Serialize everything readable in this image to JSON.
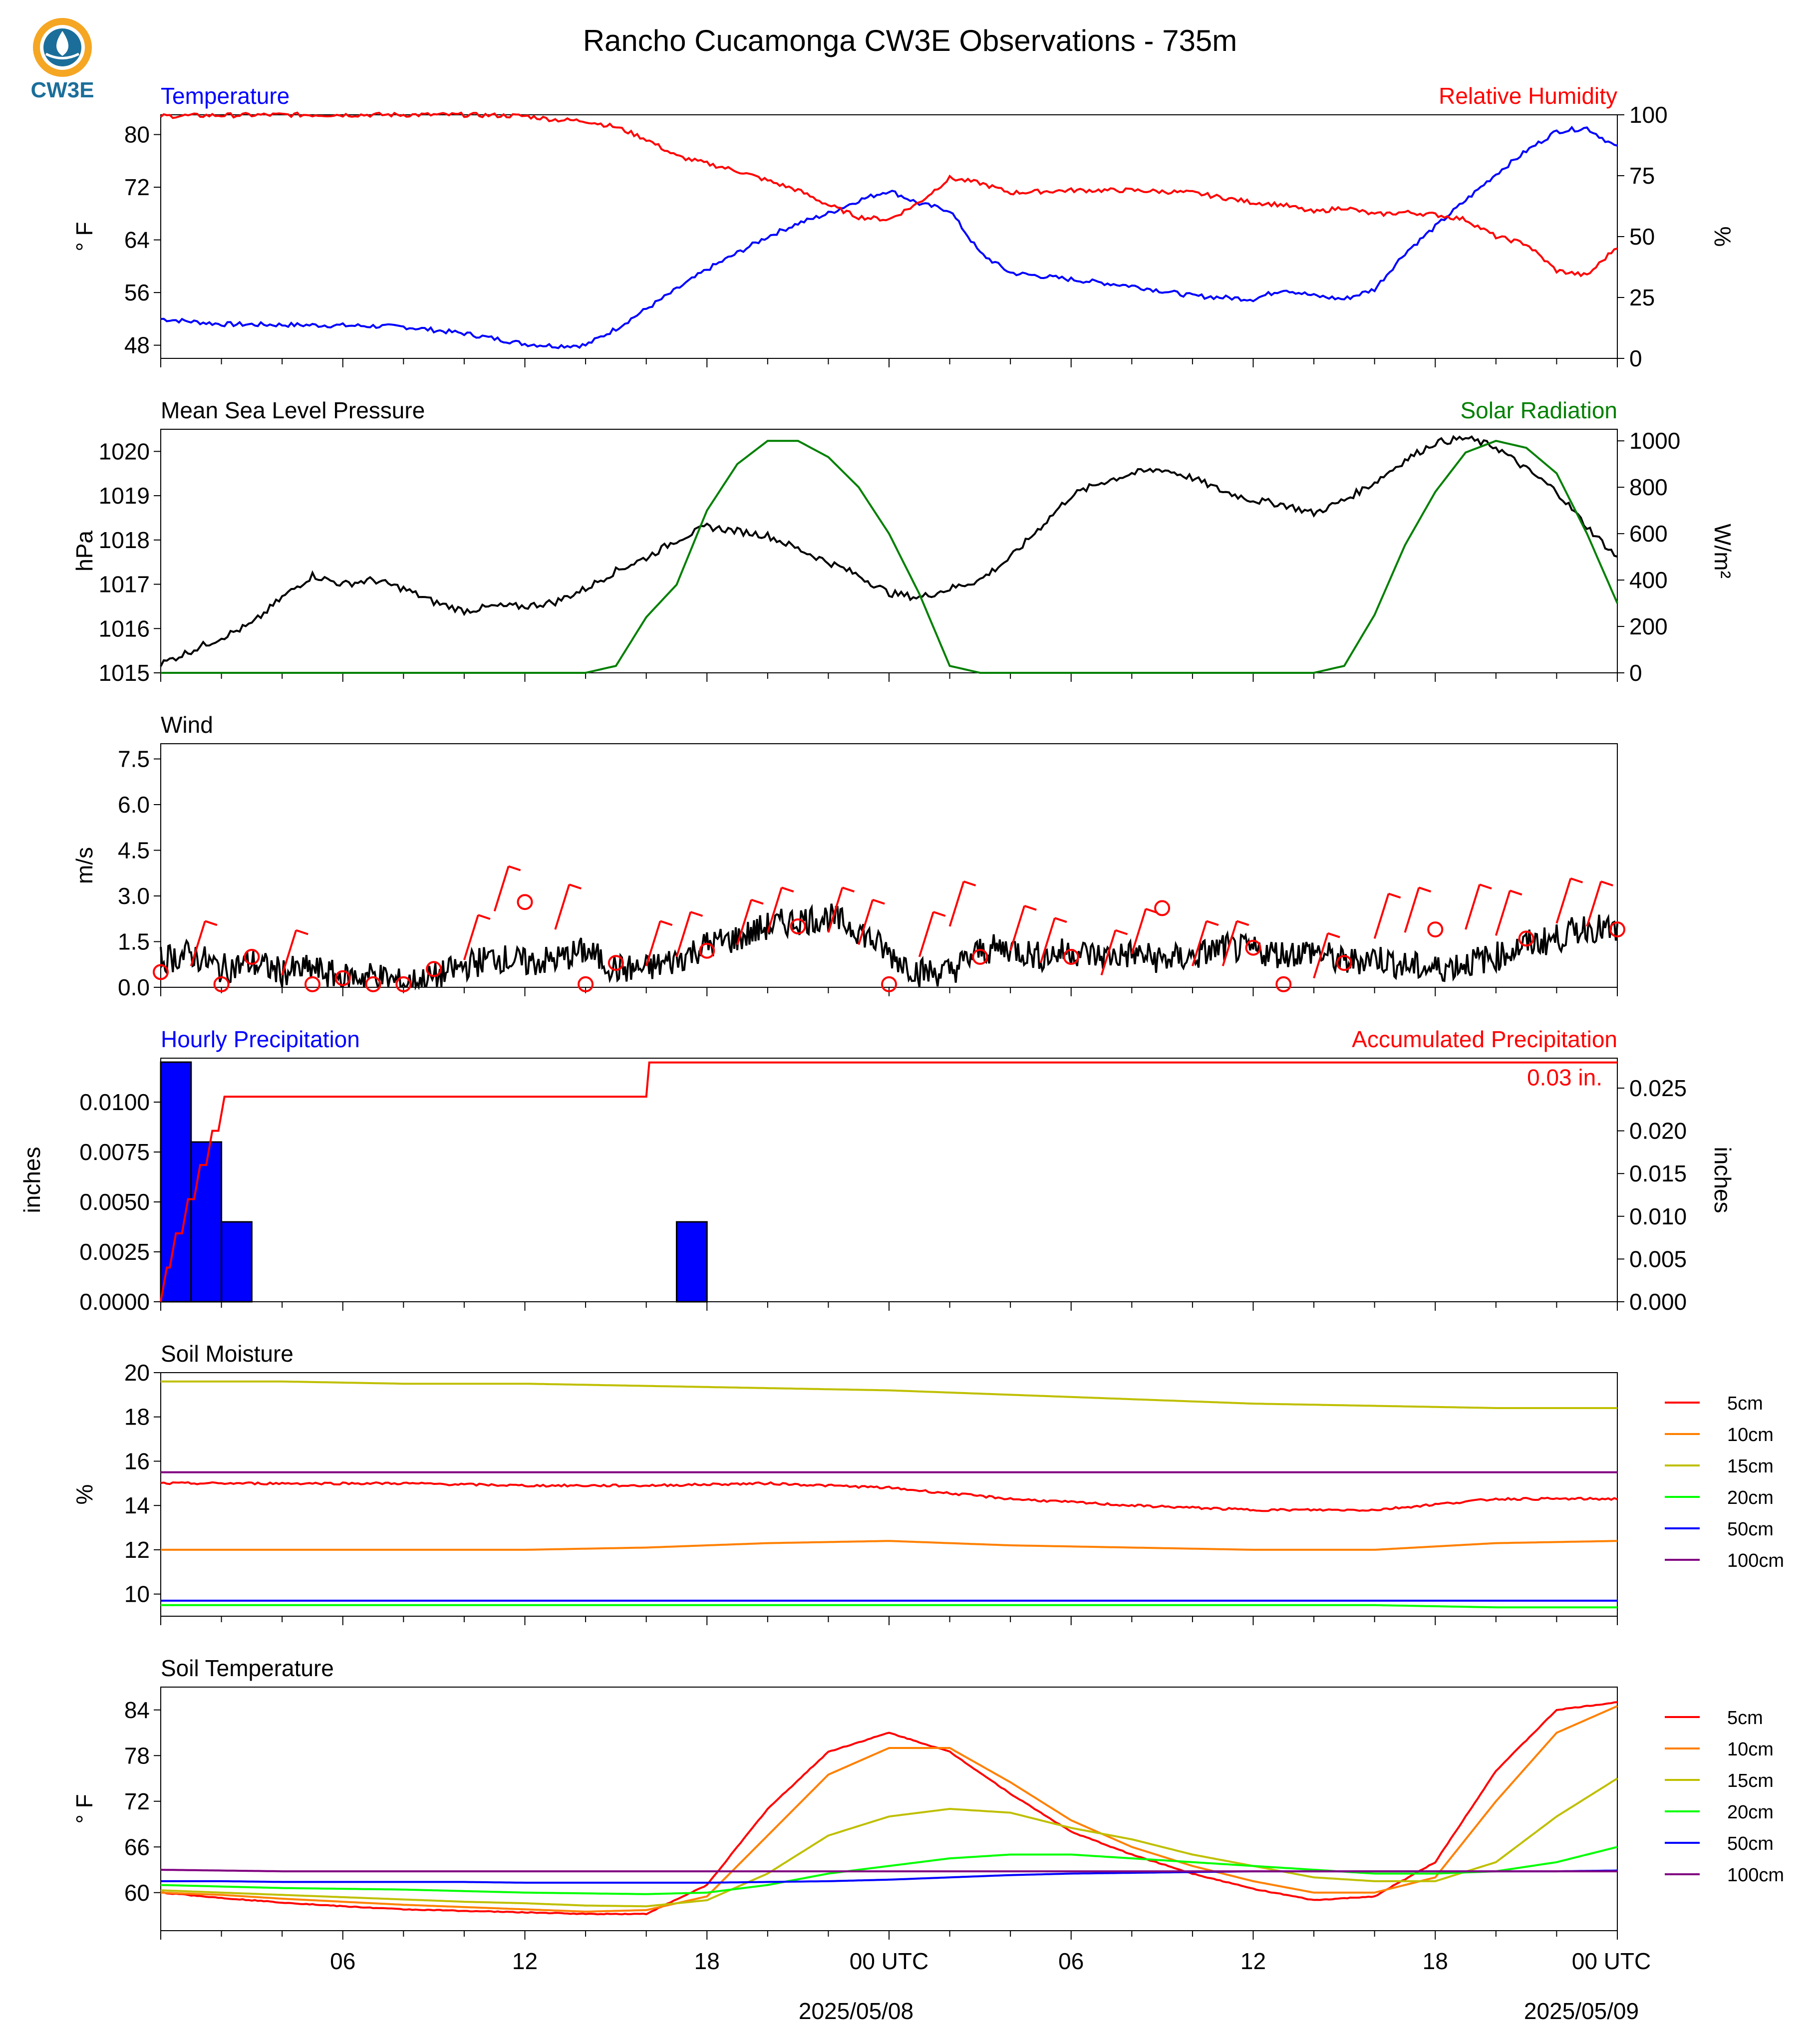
{
  "title": "Rancho Cucamonga CW3E Observations - 735m",
  "logo": {
    "text": "CW3E",
    "icon": "cw3e-logo-icon",
    "ring": "#f5a623",
    "drop": "#1b6e9a"
  },
  "x_axis": {
    "ticks": [
      "06",
      "12",
      "18",
      "00 UTC",
      "06",
      "12",
      "18",
      "00 UTC"
    ],
    "dates": [
      "2025/05/08",
      "2025/05/09"
    ]
  },
  "chart_data": [
    {
      "type": "line",
      "panel": "temperature-humidity",
      "title_left": "Temperature",
      "title_right": "Relative Humidity",
      "ylabel": "° F",
      "ylabel_right": "%",
      "ylim": [
        46,
        83
      ],
      "ylim_right": [
        0,
        100
      ],
      "yticks": [
        "48",
        "56",
        "64",
        "72",
        "80"
      ],
      "yticks_right": [
        "0",
        "25",
        "50",
        "75",
        "100"
      ],
      "x_hours": [
        0,
        2,
        4,
        6,
        8,
        10,
        12,
        13,
        14,
        15,
        16,
        17,
        18,
        19,
        20,
        21,
        22,
        23,
        24,
        25,
        26,
        27,
        28,
        30,
        32,
        34,
        36,
        37,
        38,
        39,
        40,
        41,
        42,
        43,
        44,
        45,
        46,
        47,
        48
      ],
      "series": [
        {
          "name": "Temperature",
          "color": "#0000ff",
          "axis": "left",
          "values": [
            52.0,
            51.2,
            51.1,
            51.0,
            50.8,
            49.8,
            48.2,
            47.9,
            48.0,
            50.5,
            53.5,
            56.5,
            59.5,
            62.0,
            64.5,
            66.5,
            68.0,
            70.0,
            71.5,
            69.5,
            68.5,
            62.0,
            59.0,
            58.0,
            57.0,
            55.5,
            55.0,
            56.5,
            55.5,
            55.0,
            56.5,
            62.0,
            66.0,
            70.0,
            74.0,
            77.5,
            80.5,
            81.0,
            78.0
          ]
        },
        {
          "name": "Relative Humidity",
          "color": "#ff0000",
          "axis": "right",
          "values": [
            99.5,
            99.8,
            100.0,
            100.0,
            100.0,
            100.0,
            99.5,
            98.0,
            97.5,
            95.0,
            90.0,
            83.0,
            80.0,
            77.0,
            73.0,
            69.0,
            63.0,
            58.0,
            57.0,
            64.0,
            74.0,
            72.0,
            68.0,
            69.0,
            69.0,
            68.0,
            64.0,
            63.0,
            60.0,
            62.0,
            59.0,
            60.0,
            59.0,
            57.0,
            50.0,
            47.0,
            36.0,
            34.0,
            46.0
          ]
        }
      ]
    },
    {
      "type": "line",
      "panel": "pressure-solar",
      "title_left": "Mean Sea Level Pressure",
      "title_right": "Solar Radiation",
      "ylabel": "hPa",
      "ylabel_right": "W/m²",
      "ylim": [
        1015,
        1020.5
      ],
      "ylim_right": [
        0,
        1050
      ],
      "yticks": [
        "1015",
        "1016",
        "1017",
        "1018",
        "1019",
        "1020"
      ],
      "yticks_right": [
        "0",
        "200",
        "400",
        "600",
        "800",
        "1000"
      ],
      "x_hours": [
        0,
        1,
        2,
        3,
        4,
        5,
        6,
        7,
        8,
        9,
        10,
        11,
        12,
        13,
        14,
        15,
        16,
        17,
        18,
        19,
        20,
        21,
        22,
        23,
        24,
        25,
        26,
        27,
        28,
        29,
        30,
        31,
        32,
        33,
        34,
        35,
        36,
        37,
        38,
        39,
        40,
        41,
        42,
        43,
        44,
        45,
        46,
        47,
        48
      ],
      "series": [
        {
          "name": "Mean Sea Level Pressure",
          "color": "#000000",
          "axis": "left",
          "values": [
            1015.2,
            1015.5,
            1015.8,
            1016.1,
            1016.7,
            1017.2,
            1017.0,
            1017.1,
            1016.9,
            1016.6,
            1016.4,
            1016.5,
            1016.5,
            1016.6,
            1016.9,
            1017.3,
            1017.6,
            1018.0,
            1018.3,
            1018.2,
            1018.1,
            1017.8,
            1017.5,
            1017.2,
            1016.8,
            1016.7,
            1016.9,
            1017.1,
            1017.6,
            1018.3,
            1019.0,
            1019.3,
            1019.5,
            1019.6,
            1019.4,
            1019.1,
            1018.9,
            1018.8,
            1018.6,
            1018.9,
            1019.3,
            1019.8,
            1020.2,
            1020.3,
            1020.1,
            1019.6,
            1019.1,
            1018.3,
            1017.6
          ]
        },
        {
          "name": "Solar Radiation",
          "color": "#008000",
          "axis": "right",
          "values": [
            0,
            0,
            0,
            0,
            0,
            0,
            0,
            0,
            0,
            0,
            0,
            0,
            0,
            0,
            0,
            30,
            240,
            380,
            700,
            900,
            1000,
            1000,
            930,
            800,
            600,
            340,
            30,
            0,
            0,
            0,
            0,
            0,
            0,
            0,
            0,
            0,
            0,
            0,
            0,
            30,
            250,
            550,
            780,
            950,
            1000,
            970,
            860,
            600,
            300
          ]
        }
      ]
    },
    {
      "type": "line",
      "panel": "wind",
      "title_left": "Wind",
      "ylabel": "m/s",
      "ylim": [
        0,
        8
      ],
      "yticks": [
        "0.0",
        "1.5",
        "3.0",
        "4.5",
        "6.0",
        "7.5"
      ],
      "x_hours": [
        0,
        1,
        2,
        3,
        4,
        5,
        6,
        7,
        8,
        9,
        10,
        11,
        12,
        13,
        14,
        15,
        16,
        17,
        18,
        19,
        20,
        21,
        22,
        23,
        24,
        25,
        26,
        27,
        28,
        29,
        30,
        31,
        32,
        33,
        34,
        35,
        36,
        37,
        38,
        39,
        40,
        41,
        42,
        43,
        44,
        45,
        46,
        47,
        48
      ],
      "series": [
        {
          "name": "Wind Speed",
          "color": "#000000",
          "axis": "left",
          "values": [
            0.9,
            1.1,
            0.6,
            0.8,
            0.5,
            0.6,
            0.3,
            0.4,
            0.1,
            0.3,
            0.7,
            1.0,
            0.8,
            0.9,
            1.2,
            0.6,
            0.6,
            0.9,
            1.4,
            1.6,
            2.0,
            2.2,
            2.3,
            1.9,
            1.1,
            0.5,
            0.5,
            1.2,
            1.3,
            1.0,
            1.2,
            1.0,
            1.1,
            0.9,
            1.0,
            1.3,
            1.2,
            1.1,
            1.2,
            0.8,
            1.0,
            0.7,
            0.6,
            0.8,
            1.0,
            1.4,
            1.6,
            2.0,
            1.8
          ]
        }
      ],
      "barbs": {
        "color": "#ff0000",
        "x_hours": [
          0,
          1,
          2,
          3,
          4,
          5,
          6,
          7,
          8,
          9,
          10,
          11,
          12,
          13,
          14,
          15,
          16,
          17,
          18,
          19,
          20,
          21,
          22,
          23,
          24,
          25,
          26,
          27,
          28,
          29,
          30,
          31,
          32,
          33,
          34,
          35,
          36,
          37,
          38,
          39,
          40,
          41,
          42,
          43,
          44,
          45,
          46,
          47,
          48
        ],
        "speed": [
          0.5,
          0.7,
          0.1,
          1.0,
          0.4,
          0.1,
          0.3,
          0.1,
          0.1,
          0.6,
          0.9,
          2.5,
          2.8,
          1.9,
          0.1,
          0.8,
          0.7,
          1.0,
          1.2,
          1.4,
          1.8,
          2.0,
          1.8,
          1.4,
          0.1,
          1.0,
          2.0,
          1.0,
          1.2,
          0.8,
          1.0,
          0.4,
          1.1,
          2.6,
          0.7,
          0.7,
          1.3,
          0.1,
          0.3,
          0.8,
          1.6,
          1.8,
          1.9,
          1.9,
          1.7,
          1.6,
          2.1,
          2.0,
          1.9
        ],
        "calm_marker": "circle"
      }
    },
    {
      "type": "bar",
      "panel": "precipitation",
      "title_left": "Hourly Precipitation",
      "title_right": "Accumulated Precipitation",
      "ylabel": "inches",
      "ylabel_right": "inches",
      "ylim": [
        0,
        0.0122
      ],
      "ylim_right": [
        0,
        0.0285
      ],
      "yticks": [
        "0.0000",
        "0.0025",
        "0.0050",
        "0.0075",
        "0.0100"
      ],
      "yticks_right": [
        "0.000",
        "0.005",
        "0.010",
        "0.015",
        "0.020",
        "0.025"
      ],
      "bars": {
        "name": "Hourly Precipitation",
        "color": "#0000ff",
        "x_hours": [
          0,
          1,
          2,
          17
        ],
        "values": [
          0.012,
          0.008,
          0.004,
          0.004
        ]
      },
      "series": [
        {
          "name": "Accumulated Precipitation",
          "color": "#ff0000",
          "axis": "right",
          "x_hours": [
            0,
            0.2,
            0.3,
            0.5,
            0.7,
            0.9,
            1.1,
            1.3,
            1.5,
            1.7,
            1.9,
            2.1,
            2.5,
            2.6,
            16.0,
            16.1,
            48
          ],
          "values": [
            0.0,
            0.004,
            0.004,
            0.008,
            0.008,
            0.012,
            0.012,
            0.016,
            0.016,
            0.02,
            0.02,
            0.024,
            0.024,
            0.024,
            0.024,
            0.028,
            0.028
          ]
        }
      ],
      "annotation": "0.03 in."
    },
    {
      "type": "line",
      "panel": "soil-moisture",
      "title_left": "Soil Moisture",
      "ylabel": "%",
      "ylim": [
        9,
        20
      ],
      "yticks": [
        "10",
        "12",
        "14",
        "16",
        "18",
        "20"
      ],
      "x_hours": [
        0,
        4,
        8,
        12,
        16,
        20,
        24,
        28,
        32,
        36,
        40,
        44,
        48
      ],
      "series": [
        {
          "name": "5cm",
          "color": "#ff0000",
          "values": [
            15.0,
            15.0,
            15.0,
            14.9,
            14.9,
            15.0,
            14.8,
            14.3,
            14.0,
            13.8,
            13.8,
            14.3,
            14.3
          ]
        },
        {
          "name": "10cm",
          "color": "#ff8000",
          "values": [
            12.0,
            12.0,
            12.0,
            12.0,
            12.1,
            12.3,
            12.4,
            12.2,
            12.1,
            12.0,
            12.0,
            12.3,
            12.4
          ]
        },
        {
          "name": "15cm",
          "color": "#bfbf00",
          "values": [
            19.6,
            19.6,
            19.5,
            19.5,
            19.4,
            19.3,
            19.2,
            19.0,
            18.8,
            18.6,
            18.5,
            18.4,
            18.4
          ]
        },
        {
          "name": "20cm",
          "color": "#00ff00",
          "values": [
            9.5,
            9.5,
            9.5,
            9.5,
            9.5,
            9.5,
            9.5,
            9.5,
            9.5,
            9.5,
            9.5,
            9.4,
            9.4
          ]
        },
        {
          "name": "50cm",
          "color": "#0000ff",
          "values": [
            9.7,
            9.7,
            9.7,
            9.7,
            9.7,
            9.7,
            9.7,
            9.7,
            9.7,
            9.7,
            9.7,
            9.7,
            9.7
          ]
        },
        {
          "name": "100cm",
          "color": "#800080",
          "values": [
            15.5,
            15.5,
            15.5,
            15.5,
            15.5,
            15.5,
            15.5,
            15.5,
            15.5,
            15.5,
            15.5,
            15.5,
            15.5
          ]
        }
      ],
      "legend": "right"
    },
    {
      "type": "line",
      "panel": "soil-temperature",
      "title_left": "Soil Temperature",
      "ylabel": "° F",
      "ylim": [
        55,
        87
      ],
      "yticks": [
        "60",
        "66",
        "72",
        "78",
        "84"
      ],
      "x_hours": [
        0,
        2,
        4,
        6,
        8,
        10,
        12,
        14,
        16,
        18,
        20,
        22,
        24,
        26,
        28,
        30,
        32,
        34,
        36,
        38,
        40,
        42,
        44,
        46,
        48
      ],
      "series": [
        {
          "name": "5cm",
          "color": "#ff0000",
          "values": [
            60.0,
            59.3,
            58.7,
            58.2,
            57.8,
            57.6,
            57.4,
            57.2,
            57.2,
            61.0,
            71.0,
            78.5,
            81.0,
            78.5,
            73.0,
            68.0,
            65.0,
            62.5,
            60.5,
            59.0,
            59.5,
            64.0,
            76.0,
            84.0,
            85.0
          ]
        },
        {
          "name": "10cm",
          "color": "#ff8000",
          "values": [
            60.0,
            59.7,
            59.2,
            58.8,
            58.4,
            58.1,
            57.8,
            57.5,
            57.7,
            59.5,
            67.5,
            75.5,
            79.0,
            79.0,
            74.5,
            69.5,
            66.0,
            63.5,
            61.5,
            60.0,
            60.0,
            62.0,
            72.0,
            81.0,
            84.5
          ]
        },
        {
          "name": "15cm",
          "color": "#bfbf00",
          "values": [
            60.3,
            60.0,
            59.7,
            59.4,
            59.1,
            58.8,
            58.6,
            58.3,
            58.2,
            59.0,
            62.5,
            67.5,
            70.0,
            71.0,
            70.5,
            68.5,
            67.0,
            65.0,
            63.5,
            62.0,
            61.5,
            61.5,
            64.0,
            70.0,
            75.0
          ]
        },
        {
          "name": "20cm",
          "color": "#00ff00",
          "values": [
            61.0,
            60.8,
            60.6,
            60.5,
            60.4,
            60.2,
            60.0,
            59.9,
            59.8,
            60.0,
            61.0,
            62.5,
            63.5,
            64.5,
            65.0,
            65.0,
            64.5,
            64.0,
            63.5,
            63.0,
            62.5,
            62.5,
            62.8,
            64.0,
            66.0
          ]
        },
        {
          "name": "50cm",
          "color": "#0000ff",
          "values": [
            61.5,
            61.5,
            61.4,
            61.4,
            61.4,
            61.4,
            61.3,
            61.3,
            61.3,
            61.3,
            61.4,
            61.5,
            61.7,
            62.0,
            62.3,
            62.5,
            62.6,
            62.7,
            62.8,
            62.8,
            62.8,
            62.8,
            62.8,
            62.8,
            62.9
          ]
        },
        {
          "name": "100cm",
          "color": "#800080",
          "values": [
            63.0,
            62.9,
            62.8,
            62.8,
            62.8,
            62.8,
            62.8,
            62.8,
            62.8,
            62.8,
            62.8,
            62.8,
            62.8,
            62.8,
            62.8,
            62.8,
            62.8,
            62.8,
            62.8,
            62.8,
            62.8,
            62.8,
            62.8,
            62.8,
            62.8
          ]
        }
      ],
      "legend": "right"
    }
  ]
}
